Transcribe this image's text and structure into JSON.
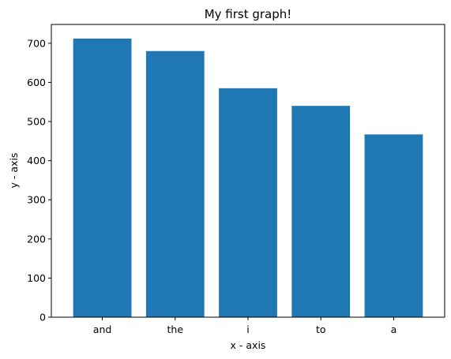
{
  "chart_data": {
    "type": "bar",
    "title": "My first graph!",
    "xlabel": "x - axis",
    "ylabel": "y - axis",
    "categories": [
      "and",
      "the",
      "i",
      "to",
      "a"
    ],
    "values": [
      712,
      680,
      585,
      540,
      467
    ],
    "ylim": [
      0,
      748
    ],
    "yticks": [
      0,
      100,
      200,
      300,
      400,
      500,
      600,
      700
    ],
    "bar_color": "#1f77b4",
    "grid": false,
    "legend": "none"
  }
}
